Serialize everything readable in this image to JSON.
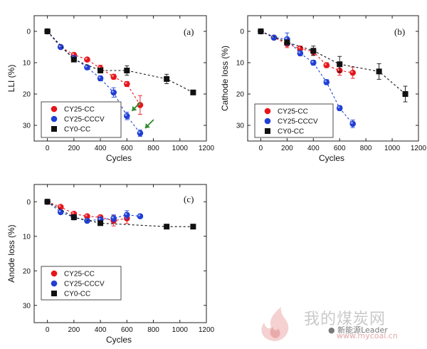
{
  "watermark": {
    "site_name": "我的煤炭网",
    "url": "www.mycoal.cn",
    "wechat_account": "新能源Leader"
  },
  "colors": {
    "cy25_cc": "#e8141b",
    "cy25_cccv": "#1f3fd6",
    "cy0_cc": "#111111",
    "arrow": "#2e8b2e"
  },
  "chart_data": [
    {
      "panel_label": "(a)",
      "type": "scatter",
      "xlabel": "Cycles",
      "ylabel": "LLI (%)",
      "xlim": [
        -100,
        1200
      ],
      "ylim": [
        35,
        -5
      ],
      "yaxis_inverted": true,
      "xticks": [
        0,
        200,
        400,
        600,
        800,
        1000,
        1200
      ],
      "yticks": [
        0,
        10,
        20,
        30
      ],
      "legend_position": "lower-left",
      "annotations": [
        "green arrows pointing to CY25-CCCV points near 600 and 700 cycles"
      ],
      "series": [
        {
          "name": "CY25-CC",
          "marker": "circle",
          "color": "#e8141b",
          "x": [
            0,
            100,
            200,
            300,
            400,
            500,
            600,
            700
          ],
          "y": [
            0,
            5,
            7.5,
            9,
            11.8,
            14.5,
            16.8,
            23.5
          ],
          "err": [
            0,
            0.5,
            0.6,
            0.6,
            1.0,
            0.8,
            0.8,
            3.0
          ]
        },
        {
          "name": "CY25-CCCV",
          "marker": "circle",
          "color": "#1f3fd6",
          "x": [
            0,
            100,
            200,
            300,
            400,
            500,
            600,
            700
          ],
          "y": [
            0,
            5,
            8.5,
            11.5,
            15,
            19.5,
            27,
            32.5
          ],
          "err": [
            0,
            0.5,
            0.6,
            0.6,
            0.8,
            1.5,
            1.2,
            1.0
          ]
        },
        {
          "name": "CY0-CC",
          "marker": "square",
          "color": "#111111",
          "x": [
            0,
            200,
            400,
            600,
            900,
            1100
          ],
          "y": [
            0,
            9,
            12.5,
            12.5,
            15.2,
            19.5
          ],
          "err": [
            0,
            0.5,
            0.8,
            1.5,
            1.5,
            0.5
          ]
        }
      ]
    },
    {
      "panel_label": "(b)",
      "type": "scatter",
      "xlabel": "Cycles",
      "ylabel": "Cathode loss (%)",
      "xlim": [
        -100,
        1200
      ],
      "ylim": [
        35,
        -5
      ],
      "yaxis_inverted": true,
      "xticks": [
        0,
        200,
        400,
        600,
        800,
        1000,
        1200
      ],
      "yticks": [
        0,
        10,
        20,
        30
      ],
      "legend_position": "lower-left",
      "series": [
        {
          "name": "CY25-CC",
          "marker": "circle",
          "color": "#e8141b",
          "x": [
            0,
            100,
            200,
            300,
            400,
            500,
            600,
            700
          ],
          "y": [
            0,
            2,
            4,
            5.5,
            6.5,
            10.8,
            12.5,
            13.2
          ],
          "err": [
            0,
            0.5,
            1.2,
            0.8,
            1.0,
            0.8,
            1.5,
            1.8
          ]
        },
        {
          "name": "CY25-CCCV",
          "marker": "circle",
          "color": "#1f3fd6",
          "x": [
            0,
            100,
            200,
            300,
            400,
            500,
            600,
            700
          ],
          "y": [
            0,
            2,
            2.5,
            7,
            10,
            16.2,
            24.5,
            29.5
          ],
          "err": [
            0,
            0.5,
            2.0,
            0.8,
            0.8,
            0.8,
            0.8,
            1.2
          ]
        },
        {
          "name": "CY0-CC",
          "marker": "square",
          "color": "#111111",
          "x": [
            0,
            200,
            400,
            600,
            900,
            1100
          ],
          "y": [
            0,
            3.5,
            6.2,
            10.5,
            12.8,
            20
          ],
          "err": [
            0,
            0.5,
            1.5,
            2.5,
            2.5,
            2.5
          ]
        }
      ]
    },
    {
      "panel_label": "(c)",
      "type": "scatter",
      "xlabel": "Cycles",
      "ylabel": "Anode loss (%)",
      "xlim": [
        -100,
        1200
      ],
      "ylim": [
        35,
        -5
      ],
      "yaxis_inverted": true,
      "xticks": [
        0,
        200,
        400,
        600,
        800,
        1000,
        1200
      ],
      "yticks": [
        0,
        10,
        20,
        30
      ],
      "legend_position": "lower-left",
      "series": [
        {
          "name": "CY25-CC",
          "marker": "circle",
          "color": "#e8141b",
          "x": [
            0,
            100,
            200,
            300,
            400,
            500,
            600
          ],
          "y": [
            0,
            1.5,
            3.5,
            4.2,
            4.5,
            5.5,
            4.8
          ],
          "err": [
            0,
            0.3,
            0.4,
            0.5,
            0.6,
            1.5,
            1.5
          ]
        },
        {
          "name": "CY25-CCCV",
          "marker": "circle",
          "color": "#1f3fd6",
          "x": [
            0,
            100,
            200,
            300,
            400,
            500,
            600,
            700
          ],
          "y": [
            0,
            3,
            4.5,
            5.5,
            5.2,
            4.8,
            3.8,
            4.2
          ],
          "err": [
            0,
            0.3,
            0.4,
            0.6,
            0.8,
            1.0,
            1.2,
            0.6
          ]
        },
        {
          "name": "CY0-CC",
          "marker": "square",
          "color": "#111111",
          "x": [
            0,
            200,
            400,
            900,
            1100
          ],
          "y": [
            0,
            4.5,
            6.2,
            7.2,
            7.2
          ],
          "err": [
            0,
            0.3,
            0.4,
            0.4,
            0.4
          ]
        }
      ]
    }
  ]
}
